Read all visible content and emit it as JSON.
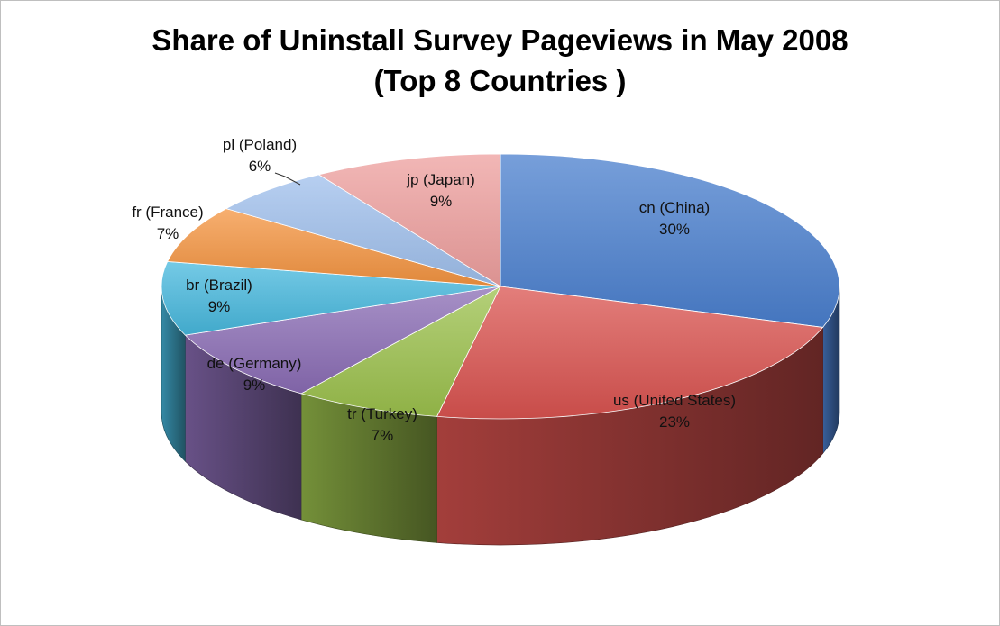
{
  "chart_data": {
    "type": "pie",
    "title_line1": "Share of Uninstall Survey Pageviews in May 2008",
    "title_line2": "(Top 8 Countries )",
    "slices": [
      {
        "name": "cn (China)",
        "value": 30,
        "label": "30%",
        "color": "#4a7fce"
      },
      {
        "name": "us (United States)",
        "value": 23,
        "label": "23%",
        "color": "#d9534f"
      },
      {
        "name": "tr (Turkey)",
        "value": 7,
        "label": "7%",
        "color": "#9bc04c"
      },
      {
        "name": "de (Germany)",
        "value": 9,
        "label": "9%",
        "color": "#8a6cb4"
      },
      {
        "name": "br (Brazil)",
        "value": 9,
        "label": "9%",
        "color": "#47b8dd"
      },
      {
        "name": "fr (France)",
        "value": 7,
        "label": "7%",
        "color": "#f49440"
      },
      {
        "name": "pl (Poland)",
        "value": 6,
        "label": "6%",
        "color": "#9fbfec"
      },
      {
        "name": "jp (Japan)",
        "value": 9,
        "label": "9%",
        "color": "#ee9f9e"
      }
    ],
    "legend": "none",
    "style": "3d"
  }
}
